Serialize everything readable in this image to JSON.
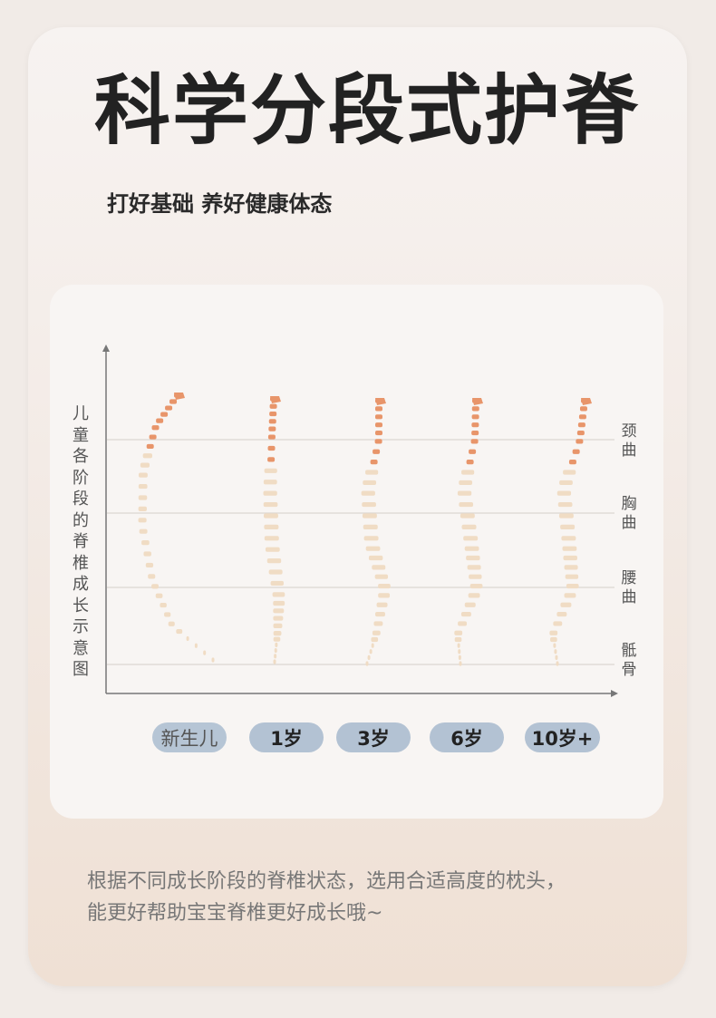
{
  "title": "科学分段式护脊",
  "subtitle": "打好基础 养好健康体态",
  "diagram": {
    "y_axis_label": "儿童各阶段的脊椎成长示意图",
    "curve_labels": [
      "颈曲",
      "胸曲",
      "腰曲",
      "骶骨"
    ],
    "stages": [
      "新生儿",
      "1岁",
      "3岁",
      "6岁",
      "10岁+"
    ],
    "colors": {
      "cervical": "#e8956a",
      "vertebra": "#f0dcc4",
      "pill": "#b3c2d3",
      "grid": "#dcd6d2"
    }
  },
  "description": [
    "根据不同成长阶段的脊椎状态，选用合适高度的枕头，",
    "能更好帮助宝宝脊椎更好成长哦~"
  ]
}
